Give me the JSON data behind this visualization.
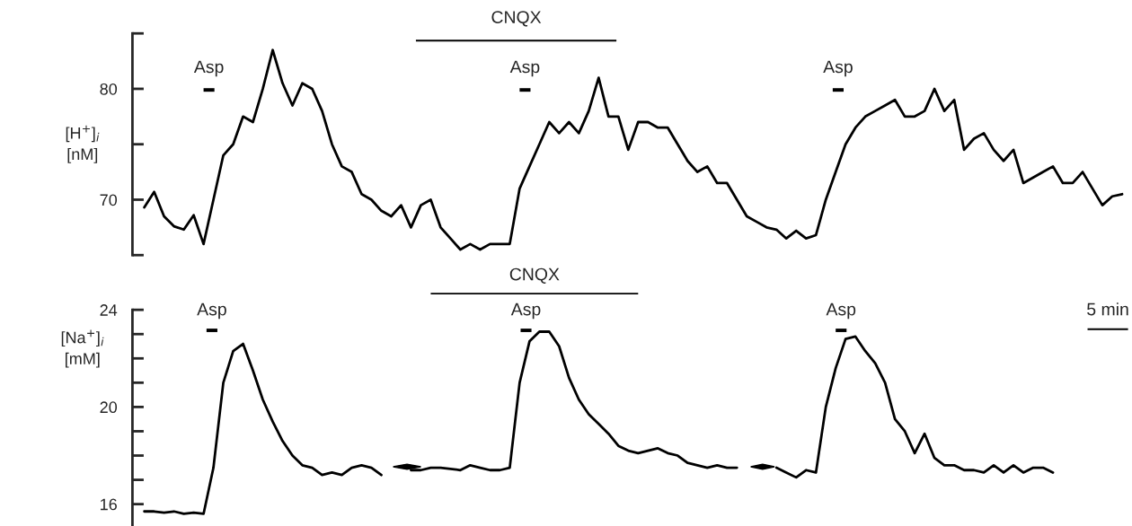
{
  "chart_data": [
    {
      "type": "line",
      "ylabel": "[H$^{+}$]$_{i}$\n[nM]",
      "categories": [
        null,
        null,
        null,
        null,
        null,
        null,
        null,
        null,
        null,
        null,
        null,
        null,
        null,
        null,
        null,
        null,
        null,
        null,
        null,
        null,
        null,
        null,
        null,
        null,
        null,
        null,
        null,
        null,
        null,
        null,
        null,
        null,
        null,
        null,
        null,
        null,
        null,
        null,
        null,
        null,
        null,
        null,
        null,
        null,
        null,
        null,
        null,
        null,
        null,
        null,
        null,
        null,
        null,
        null,
        null,
        null,
        null,
        null,
        null,
        null,
        null,
        null,
        null,
        null,
        null,
        null,
        null,
        null,
        null,
        null,
        null,
        null,
        null,
        null,
        null,
        null,
        null,
        null,
        null,
        null,
        null,
        null,
        null,
        null,
        null,
        null,
        null,
        null,
        null,
        null,
        null,
        null,
        null,
        null,
        null,
        null,
        null,
        null,
        null,
        null
      ],
      "series": [
        {
          "color": "#000000",
          "values": [
            69.3,
            70.7,
            68.5,
            67.6,
            67.3,
            68.6,
            66.0,
            70,
            74,
            75,
            77.5,
            77,
            80,
            83.5,
            80.5,
            78.5,
            80.5,
            80,
            78,
            75,
            73,
            72.5,
            70.5,
            70,
            69,
            68.5,
            69.5,
            67.5,
            69.5,
            70,
            67.5,
            66.5,
            65.5,
            66,
            65.5,
            66,
            66,
            66,
            71,
            73,
            75,
            77,
            76,
            77,
            76,
            78,
            81,
            77.5,
            77.5,
            74.5,
            77,
            77,
            76.5,
            76.5,
            75,
            73.5,
            72.5,
            73,
            71.5,
            71.5,
            70,
            68.5,
            68,
            67.5,
            67.3,
            66.5,
            67.2,
            66.5,
            66.8,
            70,
            72.5,
            75,
            76.5,
            77.5,
            78,
            78.5,
            79,
            77.5,
            77.5,
            78,
            80,
            78,
            79,
            74.5,
            75.5,
            76,
            74.5,
            73.5,
            74.5,
            71.5,
            72,
            72.5,
            73,
            71.5,
            71.5,
            72.5,
            71,
            69.5,
            70.3,
            70.5
          ]
        }
      ],
      "ylim": [
        65,
        85
      ],
      "yticks": [
        {
          "value": 65,
          "label": null
        },
        70,
        {
          "value": 75,
          "label": null
        },
        80,
        {
          "value": 85,
          "label": null
        }
      ],
      "grid": false,
      "line_style": "solid",
      "annotations": [
        "CNQX",
        "Asp",
        "Asp",
        "Asp"
      ]
    },
    {
      "type": "line",
      "ylabel": "[Na$^{+}$]$_{i}$\n[mM]",
      "categories": [
        null,
        null,
        null,
        null,
        null,
        null,
        null,
        null,
        null,
        null,
        null,
        null,
        null,
        null,
        null,
        null,
        null,
        null,
        null,
        null,
        null,
        null,
        null,
        null,
        null,
        null,
        null,
        null,
        null,
        null,
        null,
        null,
        null,
        null,
        null,
        null,
        null,
        null,
        null,
        null,
        null,
        null,
        null,
        null,
        null,
        null,
        null,
        null,
        null,
        null,
        null,
        null,
        null,
        null,
        null,
        null,
        null,
        null,
        null,
        null,
        null,
        null,
        null,
        null,
        null,
        null,
        null,
        null,
        null,
        null,
        null,
        null,
        null,
        null,
        null,
        null,
        null,
        null,
        null,
        null,
        null,
        null,
        null,
        null,
        null,
        null,
        null,
        null,
        null,
        null,
        null,
        null,
        null,
        null,
        null,
        null,
        null,
        null,
        null,
        null
      ],
      "series": [
        {
          "color": "#000000",
          "values": [
            15.7,
            15.7,
            15.65,
            15.7,
            15.6,
            15.65,
            15.6,
            17.5,
            21.0,
            22.3,
            22.6,
            21.5,
            20.3,
            19.4,
            18.6,
            18.0,
            17.6,
            17.5,
            17.2,
            17.3,
            17.2,
            17.5,
            17.6,
            17.5,
            17.2,
            null,
            null,
            17.4,
            17.4,
            17.5,
            17.5,
            17.45,
            17.4,
            17.6,
            17.5,
            17.4,
            17.4,
            17.5,
            21,
            22.7,
            23.1,
            23.1,
            22.5,
            21.2,
            20.3,
            19.7,
            19.3,
            18.9,
            18.4,
            18.2,
            18.1,
            18.2,
            18.3,
            18.1,
            18.0,
            17.7,
            17.6,
            17.5,
            17.6,
            17.5,
            17.5,
            null,
            null,
            null,
            17.5,
            17.3,
            17.1,
            17.4,
            17.3,
            20.0,
            21.6,
            22.8,
            22.9,
            22.3,
            21.8,
            21.0,
            19.5,
            19.0,
            18.1,
            18.9,
            17.9,
            17.6,
            17.6,
            17.4,
            17.4,
            17.3,
            17.6,
            17.3,
            17.6,
            17.3,
            17.5,
            17.5,
            17.3,
            null,
            null,
            null,
            null,
            null,
            null,
            null
          ]
        }
      ],
      "ylim": [
        15.1,
        24
      ],
      "yticks": [
        16,
        {
          "value": 17,
          "label": null
        },
        {
          "value": 18,
          "label": null
        },
        {
          "value": 19,
          "label": null
        },
        20,
        {
          "value": 21,
          "label": null
        },
        {
          "value": 22,
          "label": null
        },
        {
          "value": 23,
          "label": null
        },
        24
      ],
      "grid": false,
      "line_style": "solid",
      "annotations": [
        "CNQX",
        "Asp",
        "Asp",
        "Asp",
        "5 min"
      ]
    }
  ]
}
